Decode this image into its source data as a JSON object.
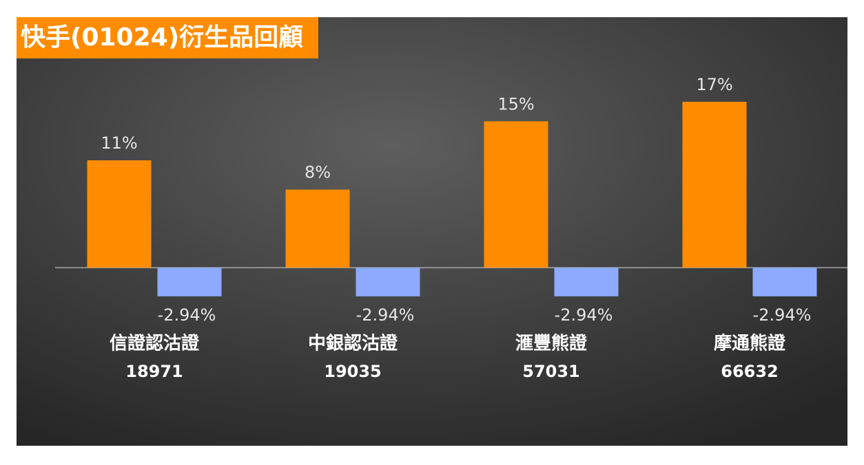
{
  "chart_data": {
    "type": "bar",
    "title": "快手(01024)衍生品回顧",
    "categories": [
      [
        "信證認沽證",
        "18971"
      ],
      [
        "中銀認沽證",
        "19035"
      ],
      [
        "滙豐熊證",
        "57031"
      ],
      [
        "摩通熊證",
        "66632"
      ]
    ],
    "series": [
      {
        "color": "#ff8c00",
        "values": [
          11,
          8,
          15,
          17
        ],
        "value_labels": [
          "11%",
          "8%",
          "15%",
          "17%"
        ]
      },
      {
        "color": "#8eaaff",
        "values": [
          -2.94,
          -2.94,
          -2.94,
          -2.94
        ],
        "value_labels": [
          "-2.94%",
          "-2.94%",
          "-2.94%",
          "-2.94%"
        ]
      }
    ],
    "ylim": [
      -5,
      20
    ]
  }
}
